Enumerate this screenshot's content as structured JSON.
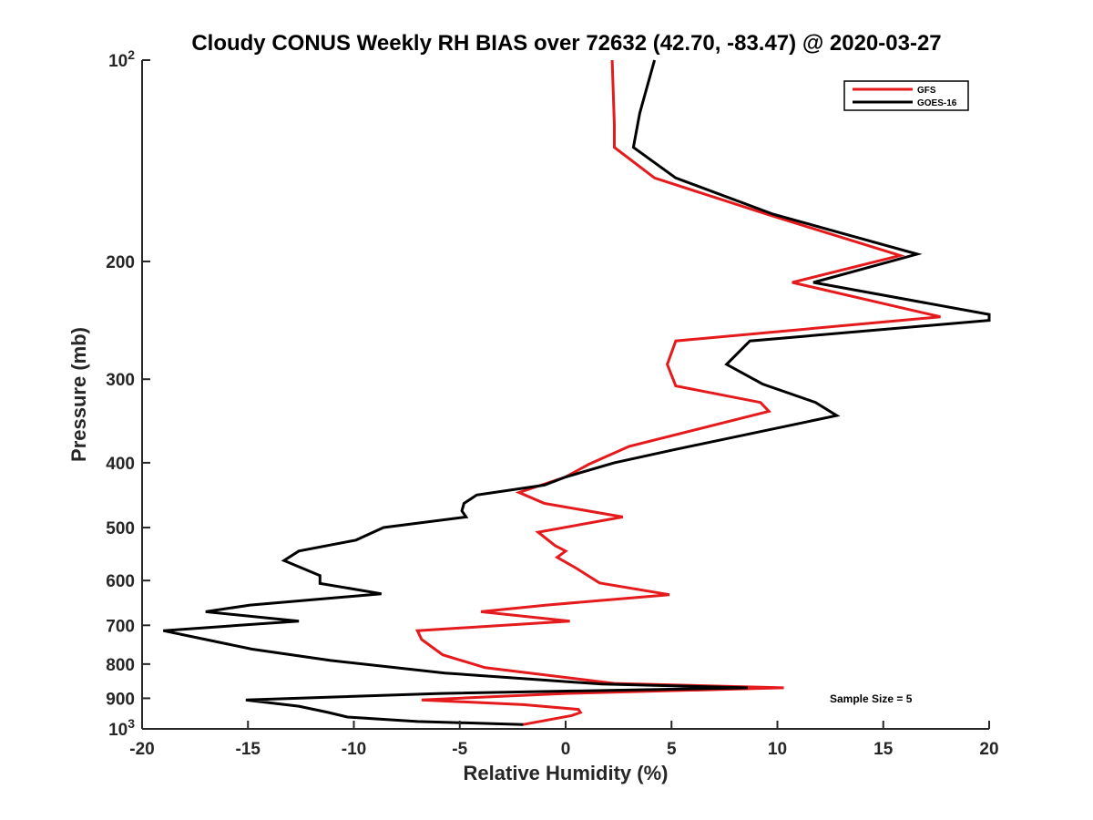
{
  "chart_data": {
    "type": "line",
    "title": "Cloudy CONUS Weekly RH BIAS over 72632 (42.70, -83.47) @ 2020-03-27",
    "xlabel": "Relative Humidity (%)",
    "ylabel": "Pressure (mb)",
    "xlim": [
      -20,
      20
    ],
    "ylim": [
      100,
      1000
    ],
    "y_scale": "log",
    "y_reversed": true,
    "x_ticks": [
      -20,
      -15,
      -10,
      -5,
      0,
      5,
      10,
      15,
      20
    ],
    "y_ticks": [
      {
        "value": 100,
        "base": "10",
        "exp": "2"
      },
      {
        "value": 200,
        "label": "200"
      },
      {
        "value": 300,
        "label": "300"
      },
      {
        "value": 400,
        "label": "400"
      },
      {
        "value": 500,
        "label": "500"
      },
      {
        "value": 600,
        "label": "600"
      },
      {
        "value": 700,
        "label": "700"
      },
      {
        "value": 800,
        "label": "800"
      },
      {
        "value": 900,
        "label": "900"
      },
      {
        "value": 1000,
        "base": "10",
        "exp": "3"
      }
    ],
    "legend_position": "top-right",
    "annotation": "Sample Size = 5",
    "series": [
      {
        "name": "GFS",
        "color": "#e41a1c",
        "points": [
          [
            2.2,
            100
          ],
          [
            2.3,
            125
          ],
          [
            2.3,
            135
          ],
          [
            4.2,
            150
          ],
          [
            9.5,
            170
          ],
          [
            15.8,
            196
          ],
          [
            10.7,
            215
          ],
          [
            17.7,
            242
          ],
          [
            5.2,
            263
          ],
          [
            4.8,
            285
          ],
          [
            5.2,
            307
          ],
          [
            9.2,
            325
          ],
          [
            9.6,
            335
          ],
          [
            3.0,
            378
          ],
          [
            1.1,
            402
          ],
          [
            0.0,
            420
          ],
          [
            -2.2,
            443
          ],
          [
            -1.0,
            460
          ],
          [
            2.7,
            482
          ],
          [
            -1.3,
            508
          ],
          [
            -0.5,
            532
          ],
          [
            0.0,
            542
          ],
          [
            -0.4,
            554
          ],
          [
            0.5,
            575
          ],
          [
            1.6,
            605
          ],
          [
            4.9,
            630
          ],
          [
            -0.9,
            653
          ],
          [
            -4.0,
            668
          ],
          [
            0.2,
            690
          ],
          [
            -7.0,
            713
          ],
          [
            -6.8,
            735
          ],
          [
            -5.8,
            775
          ],
          [
            -3.8,
            810
          ],
          [
            2.3,
            855
          ],
          [
            10.3,
            868
          ],
          [
            0.0,
            885
          ],
          [
            -6.8,
            905
          ],
          [
            -2.0,
            920
          ],
          [
            0.6,
            935
          ],
          [
            0.7,
            945
          ],
          [
            0.3,
            955
          ],
          [
            -2.0,
            985
          ]
        ]
      },
      {
        "name": "GOES-16",
        "color": "#000000",
        "points": [
          [
            4.2,
            100
          ],
          [
            3.5,
            120
          ],
          [
            3.2,
            135
          ],
          [
            5.2,
            150
          ],
          [
            9.8,
            170
          ],
          [
            16.6,
            195
          ],
          [
            11.7,
            215
          ],
          [
            20.0,
            240
          ],
          [
            20.0,
            245
          ],
          [
            8.7,
            263
          ],
          [
            7.6,
            285
          ],
          [
            9.3,
            305
          ],
          [
            11.8,
            325
          ],
          [
            12.8,
            340
          ],
          [
            5.2,
            382
          ],
          [
            2.3,
            400
          ],
          [
            0.0,
            420
          ],
          [
            -1.0,
            432
          ],
          [
            -4.2,
            447
          ],
          [
            -4.8,
            460
          ],
          [
            -4.9,
            472
          ],
          [
            -4.7,
            482
          ],
          [
            -8.6,
            500
          ],
          [
            -9.9,
            522
          ],
          [
            -12.6,
            542
          ],
          [
            -13.3,
            560
          ],
          [
            -11.6,
            590
          ],
          [
            -11.6,
            606
          ],
          [
            -8.7,
            628
          ],
          [
            -14.9,
            653
          ],
          [
            -17.0,
            668
          ],
          [
            -12.6,
            690
          ],
          [
            -19.0,
            713
          ],
          [
            -17.0,
            735
          ],
          [
            -14.8,
            760
          ],
          [
            -11.1,
            790
          ],
          [
            -5.7,
            825
          ],
          [
            1.7,
            857
          ],
          [
            8.6,
            868
          ],
          [
            -5.9,
            885
          ],
          [
            -15.1,
            905
          ],
          [
            -12.6,
            925
          ],
          [
            -11.2,
            945
          ],
          [
            -10.3,
            960
          ],
          [
            -7.0,
            975
          ],
          [
            -2.0,
            985
          ]
        ]
      }
    ]
  }
}
